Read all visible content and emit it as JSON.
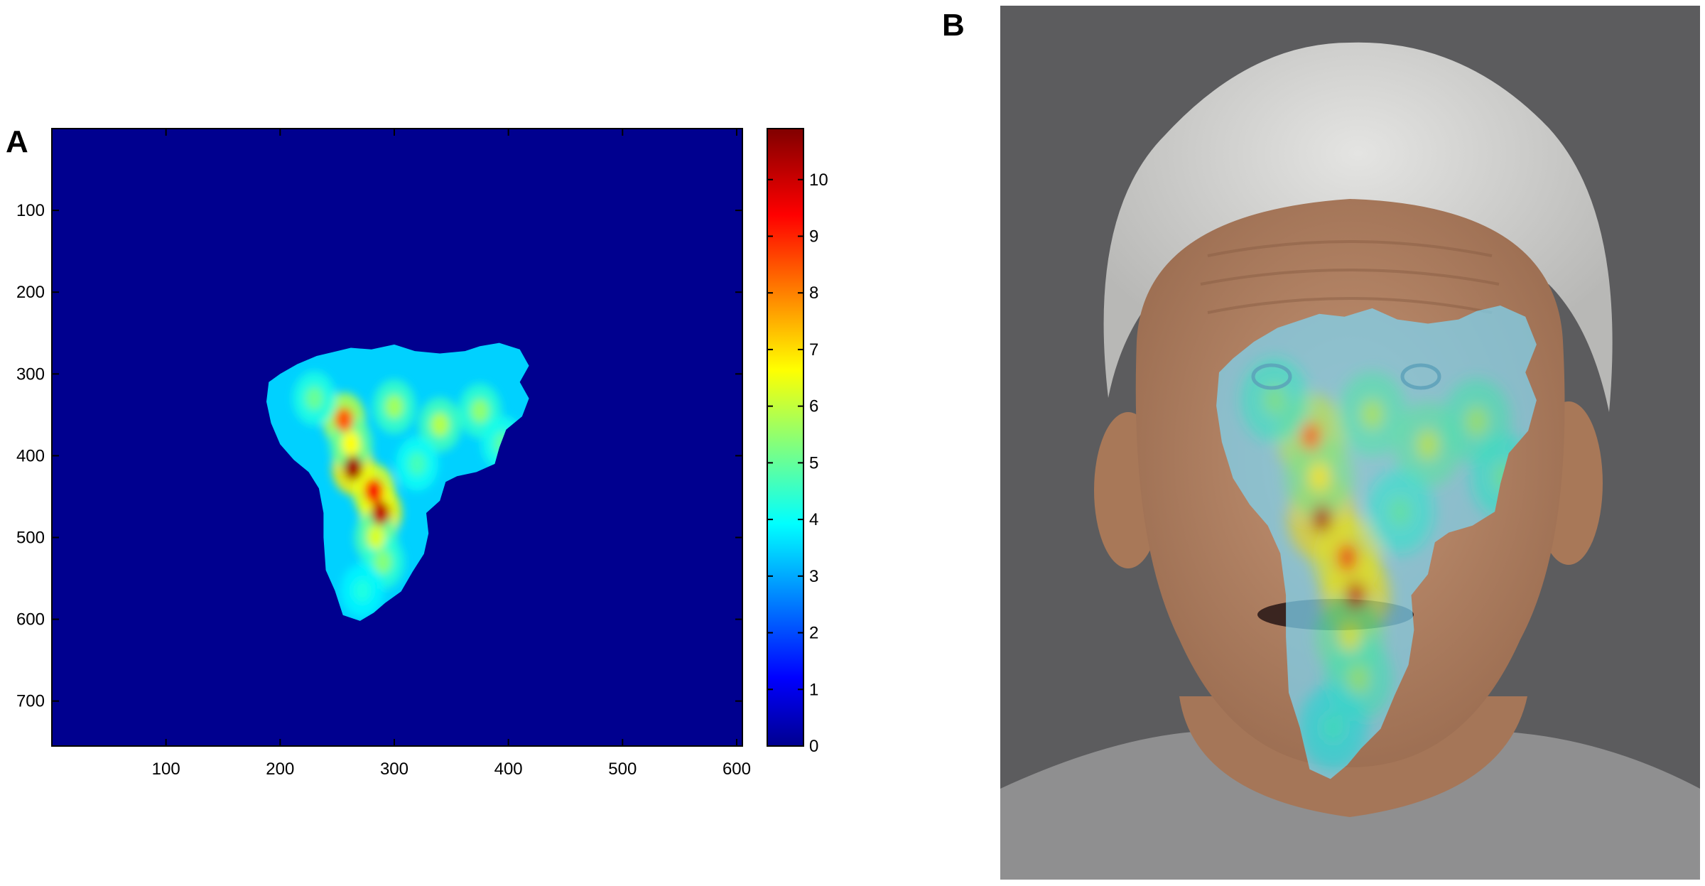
{
  "panels": {
    "a_label": "A",
    "b_label": "B"
  },
  "chart_data": {
    "type": "heatmap",
    "title": "",
    "xlabel": "",
    "ylabel": "",
    "xlim": [
      0,
      605
    ],
    "ylim": [
      0,
      755
    ],
    "y_reversed": true,
    "x_ticks": [
      100,
      200,
      300,
      400,
      500,
      600
    ],
    "y_ticks": [
      100,
      200,
      300,
      400,
      500,
      600,
      700
    ],
    "colorbar": {
      "range": [
        0,
        10.9
      ],
      "ticks": [
        0,
        1,
        2,
        3,
        4,
        5,
        6,
        7,
        8,
        9,
        10
      ],
      "colormap": "jet"
    },
    "background_value": 0,
    "region_outline": [
      [
        190,
        310
      ],
      [
        200,
        300
      ],
      [
        215,
        288
      ],
      [
        232,
        278
      ],
      [
        250,
        272
      ],
      [
        262,
        268
      ],
      [
        280,
        270
      ],
      [
        300,
        264
      ],
      [
        318,
        272
      ],
      [
        340,
        275
      ],
      [
        362,
        272
      ],
      [
        375,
        266
      ],
      [
        392,
        262
      ],
      [
        410,
        270
      ],
      [
        418,
        290
      ],
      [
        410,
        310
      ],
      [
        418,
        330
      ],
      [
        412,
        352
      ],
      [
        398,
        368
      ],
      [
        392,
        390
      ],
      [
        388,
        410
      ],
      [
        372,
        420
      ],
      [
        355,
        425
      ],
      [
        345,
        432
      ],
      [
        340,
        455
      ],
      [
        328,
        470
      ],
      [
        330,
        495
      ],
      [
        326,
        520
      ],
      [
        316,
        542
      ],
      [
        306,
        566
      ],
      [
        292,
        580
      ],
      [
        282,
        592
      ],
      [
        270,
        602
      ],
      [
        255,
        595
      ],
      [
        248,
        565
      ],
      [
        240,
        540
      ],
      [
        238,
        500
      ],
      [
        238,
        470
      ],
      [
        234,
        440
      ],
      [
        225,
        420
      ],
      [
        212,
        405
      ],
      [
        200,
        386
      ],
      [
        192,
        360
      ],
      [
        188,
        334
      ]
    ],
    "region_base_value": 3.6,
    "hotspots": [
      {
        "x": 264,
        "y": 415,
        "value": 10.5
      },
      {
        "x": 288,
        "y": 470,
        "value": 10.2
      },
      {
        "x": 282,
        "y": 443,
        "value": 9.6
      },
      {
        "x": 256,
        "y": 356,
        "value": 8.6
      },
      {
        "x": 262,
        "y": 385,
        "value": 6.8
      },
      {
        "x": 284,
        "y": 500,
        "value": 6.4
      },
      {
        "x": 290,
        "y": 530,
        "value": 5.5
      },
      {
        "x": 300,
        "y": 340,
        "value": 5.8
      },
      {
        "x": 340,
        "y": 362,
        "value": 6.0
      },
      {
        "x": 375,
        "y": 345,
        "value": 5.6
      },
      {
        "x": 230,
        "y": 330,
        "value": 5.2
      },
      {
        "x": 395,
        "y": 385,
        "value": 5.0
      },
      {
        "x": 320,
        "y": 410,
        "value": 4.8
      },
      {
        "x": 272,
        "y": 565,
        "value": 4.4
      }
    ]
  },
  "photo": {
    "background_color": "#5c5c5e",
    "hair_color": "#d6d6d4",
    "skin_color": "#b48566",
    "shirt_color": "#8f8f90"
  }
}
